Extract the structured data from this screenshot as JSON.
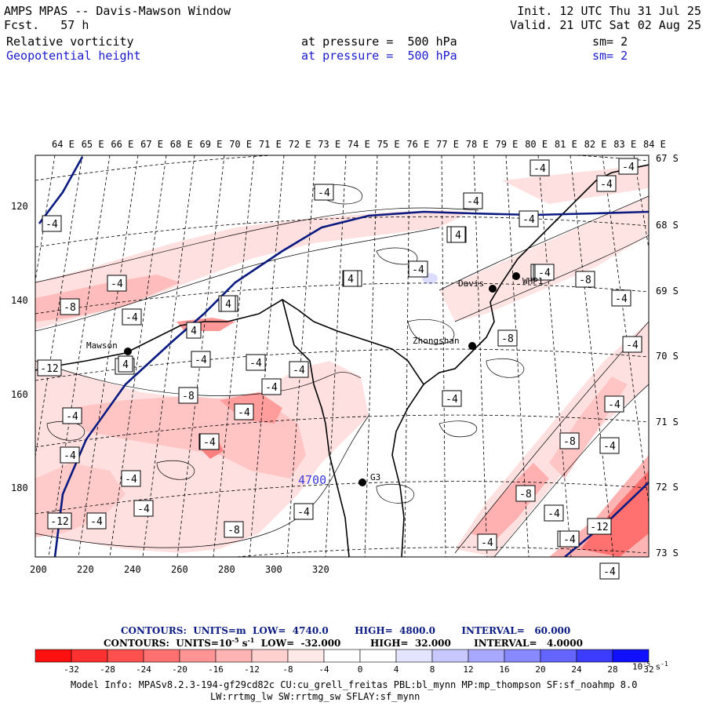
{
  "header": {
    "title": "AMPS MPAS -- Davis-Mawson Window",
    "fcst": "Fcst.   57 h",
    "init": "Init. 12 UTC Thu 31 Jul 25",
    "valid": "Valid. 21 UTC Sat 02 Aug 25",
    "field1": "Relative vorticity",
    "field2": "Geopotential height",
    "pressure1": "at pressure =  500 hPa",
    "pressure2": "at pressure =  500 hPa",
    "sm1": "sm= 2",
    "sm2": "sm= 2"
  },
  "map": {
    "top_labels": [
      "64 E",
      "65 E",
      "66 E",
      "67 E",
      "68 E",
      "69 E",
      "70 E",
      "71 E",
      "72 E",
      "73 E",
      "74 E",
      "75 E",
      "76 E",
      "77 E",
      "78 E",
      "79 E",
      "80 E",
      "81 E",
      "82 E",
      "83 E",
      "84 E"
    ],
    "right_labels": [
      "67 S",
      "68 S",
      "69 S",
      "70 S",
      "71 S",
      "72 S",
      "73 S"
    ],
    "y_labels": [
      "120",
      "140",
      "160",
      "180"
    ],
    "x_labels": [
      "200",
      "220",
      "240",
      "260",
      "280",
      "300",
      "320"
    ],
    "stations": [
      "Mawson",
      "Davis",
      "Zhongshan",
      "G3",
      "WHP1"
    ],
    "height_label": "4700",
    "boxes": [
      "-4",
      "-4",
      "-4",
      "-4",
      "-4",
      "-4",
      "-4",
      "-4",
      "-4",
      "-8",
      "-4",
      "-4",
      "-4",
      "-4",
      "-4",
      "-4",
      "-8",
      "-4",
      "-4",
      "-8",
      "-4",
      "-4",
      "-4",
      "-8",
      "-8",
      "-4",
      "-12",
      "-4",
      "-8",
      "-4",
      "-4",
      "-4",
      "-8",
      "-4",
      "-4",
      "-4",
      "-12",
      "-4",
      "-8",
      "-4",
      "-4",
      "-4",
      "-8",
      "-12",
      "-4",
      "-4",
      "-4",
      "-4",
      "4",
      "4",
      "4",
      "4",
      "4",
      "4",
      "-4"
    ]
  },
  "contours": {
    "line1": "CONTOURS:  UNITS=m  LOW=  4740.0        HIGH=  4800.0        INTERVAL=   60.000",
    "line2_a": "CONTOURS:  UNITS=10",
    "line2_exp": "-5",
    "line2_b": " s",
    "line2_exp2": "-1",
    "line2_c": "  LOW=  -32.000         HIGH=  32.000       INTERVAL=   4.0000"
  },
  "colorbar": {
    "colors": [
      "#ff1010",
      "#ff3030",
      "#ff5050",
      "#ff7070",
      "#ff9494",
      "#ffb4b4",
      "#ffd0d0",
      "#ffe8e8",
      "#ffffff",
      "#ffffff",
      "#e4e4ff",
      "#c8c8ff",
      "#a8a8ff",
      "#8888ff",
      "#6464ff",
      "#3c3cff",
      "#1010ff"
    ],
    "ticks": [
      "-32",
      "-28",
      "-24",
      "-20",
      "-16",
      "-12",
      "-8",
      "-4",
      "0",
      "4",
      "8",
      "12",
      "16",
      "20",
      "24",
      "28",
      "32"
    ],
    "unit": "10",
    "unit_exp": "-5",
    "unit_b": " s",
    "unit_exp2": "-1"
  },
  "model_info": {
    "line1": "Model Info: MPASv8.2.3-194-gf29cd82c CU:cu_grell_freitas PBL:bl_mynn MP:mp_thompson SF:sf_noahmp 8.0",
    "line2": "LW:rrtmg_lw SW:rrtmg_sw SFLAY:sf_mynn"
  }
}
